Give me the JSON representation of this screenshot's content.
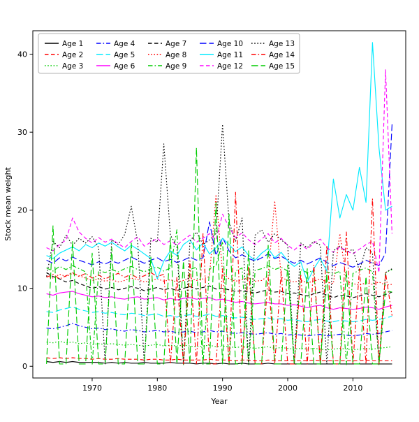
{
  "chart_data": {
    "type": "line",
    "title": "",
    "xlabel": "Year",
    "ylabel": "Stock mean weight",
    "legend_position": "top-inside",
    "grid": false,
    "xlim": [
      1960.9,
      2018.1
    ],
    "ylim": [
      -1.5,
      43
    ],
    "x_ticks": [
      1970,
      1980,
      1990,
      2000,
      2010
    ],
    "y_ticks": [
      0,
      10,
      20,
      30,
      40
    ],
    "colors": {
      "black": "#000000",
      "red": "#ff0000",
      "green": "#00cc00",
      "blue": "#0000ff",
      "cyan": "#00eaff",
      "magenta": "#ff00ff"
    },
    "x": [
      1963,
      1964,
      1965,
      1966,
      1967,
      1968,
      1969,
      1970,
      1971,
      1972,
      1973,
      1974,
      1975,
      1976,
      1977,
      1978,
      1979,
      1980,
      1981,
      1982,
      1983,
      1984,
      1985,
      1986,
      1987,
      1988,
      1989,
      1990,
      1991,
      1992,
      1993,
      1994,
      1995,
      1996,
      1997,
      1998,
      1999,
      2000,
      2001,
      2002,
      2003,
      2004,
      2005,
      2006,
      2007,
      2008,
      2009,
      2010,
      2011,
      2012,
      2013,
      2014,
      2015,
      2016
    ],
    "series": [
      {
        "name": "Age 1",
        "color": "#000000",
        "linestyle": "solid",
        "values": [
          0.6,
          0.5,
          0.6,
          0.5,
          0.6,
          0.5,
          0.5,
          0.5,
          0.5,
          0.4,
          0.5,
          0.4,
          0.5,
          0.4,
          0.4,
          0.5,
          0.4,
          0.4,
          0.4,
          0.5,
          0.4,
          0.4,
          0.4,
          0.3,
          0.4,
          0.4,
          0.3,
          0.4,
          0.3,
          0.3,
          0.4,
          0.3,
          0.3,
          0.3,
          0.4,
          0.3,
          0.3,
          0.3,
          0.3,
          0.3,
          0.3,
          0.3,
          0.3,
          0.3,
          0.3,
          0.3,
          0.3,
          0.3,
          0.3,
          0.3,
          0.3,
          0.3,
          0.3,
          0.3
        ]
      },
      {
        "name": "Age 2",
        "color": "#ff0000",
        "linestyle": "dashed",
        "values": [
          1.1,
          1.0,
          1.1,
          1.0,
          1.1,
          1.0,
          1.0,
          0.9,
          1.0,
          0.9,
          0.9,
          1.0,
          0.9,
          0.9,
          0.9,
          0.8,
          0.9,
          0.9,
          0.8,
          0.8,
          0.9,
          0.8,
          0.8,
          0.8,
          0.8,
          0.9,
          0.8,
          0.8,
          0.8,
          0.7,
          0.8,
          0.8,
          0.7,
          0.7,
          0.8,
          0.7,
          0.7,
          0.7,
          0.7,
          0.7,
          0.7,
          0.8,
          0.7,
          0.7,
          0.7,
          0.7,
          0.7,
          0.7,
          0.7,
          0.8,
          0.7,
          0.7,
          0.7,
          0.7
        ]
      },
      {
        "name": "Age 3",
        "color": "#00cc00",
        "linestyle": "dotted",
        "values": [
          3.1,
          3.0,
          3.2,
          3.0,
          3.1,
          2.9,
          3.0,
          2.8,
          2.9,
          2.8,
          2.9,
          2.8,
          2.7,
          2.8,
          2.7,
          2.6,
          2.7,
          2.8,
          2.6,
          2.7,
          2.6,
          2.7,
          2.6,
          2.5,
          2.6,
          2.7,
          2.5,
          2.6,
          2.5,
          2.4,
          2.5,
          2.4,
          2.3,
          2.4,
          2.5,
          2.3,
          2.4,
          2.3,
          2.2,
          2.3,
          2.2,
          2.3,
          2.2,
          2.1,
          2.2,
          2.3,
          2.2,
          2.1,
          2.2,
          2.3,
          2.2,
          2.3,
          2.4,
          2.5
        ]
      },
      {
        "name": "Age 4",
        "color": "#0000ff",
        "linestyle": "dashdot",
        "values": [
          4.9,
          4.8,
          5.0,
          5.2,
          5.5,
          5.2,
          5.0,
          4.8,
          4.9,
          4.7,
          4.8,
          4.6,
          4.5,
          4.7,
          4.6,
          4.4,
          4.5,
          4.6,
          4.4,
          4.5,
          4.3,
          4.4,
          4.5,
          4.3,
          4.4,
          4.6,
          4.4,
          4.5,
          4.3,
          4.2,
          4.3,
          4.2,
          4.1,
          4.2,
          4.3,
          4.1,
          4.2,
          4.0,
          4.1,
          4.0,
          3.9,
          4.0,
          4.1,
          3.9,
          4.0,
          4.1,
          4.0,
          3.9,
          4.0,
          4.2,
          4.1,
          4.2,
          4.4,
          4.6
        ]
      },
      {
        "name": "Age 5",
        "color": "#00eaff",
        "linestyle": "longdash",
        "values": [
          7.0,
          6.9,
          7.2,
          7.4,
          7.6,
          7.3,
          7.1,
          6.9,
          7.0,
          6.8,
          6.9,
          6.7,
          6.6,
          6.8,
          6.7,
          6.5,
          6.6,
          6.7,
          6.4,
          6.5,
          6.3,
          6.5,
          6.6,
          6.4,
          6.5,
          6.7,
          6.4,
          6.5,
          6.3,
          6.2,
          6.3,
          6.1,
          6.0,
          6.1,
          6.2,
          6.0,
          6.1,
          5.9,
          6.0,
          5.8,
          5.7,
          5.9,
          6.0,
          5.8,
          5.7,
          5.9,
          5.8,
          5.7,
          5.8,
          6.0,
          5.9,
          6.0,
          6.2,
          6.4
        ]
      },
      {
        "name": "Age 6",
        "color": "#ff00ff",
        "linestyle": "solid",
        "values": [
          9.3,
          9.1,
          9.4,
          9.5,
          9.6,
          9.3,
          9.1,
          8.9,
          9.0,
          8.8,
          8.9,
          8.7,
          8.6,
          8.8,
          8.9,
          8.6,
          8.7,
          8.8,
          8.5,
          8.7,
          8.5,
          8.7,
          8.8,
          8.6,
          8.7,
          8.8,
          8.5,
          8.6,
          8.4,
          8.2,
          8.3,
          8.1,
          8.0,
          8.1,
          8.2,
          8.0,
          8.0,
          7.8,
          7.9,
          7.7,
          7.5,
          7.7,
          7.8,
          7.5,
          7.3,
          7.5,
          7.4,
          7.3,
          7.4,
          7.6,
          7.5,
          7.3,
          7.6,
          7.8
        ]
      },
      {
        "name": "Age 7",
        "color": "#000000",
        "linestyle": "dashed",
        "values": [
          12.0,
          11.5,
          11.2,
          10.8,
          11.0,
          10.6,
          10.3,
          10.0,
          10.2,
          9.9,
          10.1,
          9.8,
          10.0,
          10.2,
          10.0,
          9.7,
          9.9,
          10.1,
          9.8,
          10.0,
          9.7,
          10.0,
          10.2,
          9.9,
          10.1,
          10.3,
          9.9,
          10.0,
          9.8,
          9.6,
          9.7,
          9.5,
          9.4,
          9.6,
          9.8,
          9.5,
          9.6,
          9.3,
          9.4,
          9.2,
          9.0,
          9.3,
          9.5,
          9.1,
          8.8,
          9.1,
          9.0,
          8.8,
          9.0,
          9.3,
          9.1,
          8.9,
          9.2,
          9.5
        ]
      },
      {
        "name": "Age 8",
        "color": "#ff0000",
        "linestyle": "dotted",
        "values": [
          11.6,
          11.3,
          11.8,
          11.5,
          11.9,
          11.6,
          11.3,
          11.0,
          11.2,
          10.9,
          11.1,
          10.8,
          11.0,
          11.3,
          11.1,
          10.8,
          11.0,
          11.2,
          10.9,
          11.1,
          10.8,
          11.0,
          11.3,
          11.0,
          11.2,
          11.5,
          22.0,
          12.0,
          11.2,
          10.9,
          11.1,
          11.4,
          10.9,
          11.0,
          11.6,
          21.2,
          11.4,
          11.0,
          10.8,
          11.0,
          10.7,
          10.9,
          11.2,
          10.8,
          10.6,
          17.0,
          10.9,
          10.6,
          10.4,
          10.7,
          10.5,
          10.8,
          10.4,
          10.5
        ]
      },
      {
        "name": "Age 9",
        "color": "#00cc00",
        "linestyle": "dashdot",
        "values": [
          12.6,
          12.2,
          12.8,
          12.4,
          12.9,
          12.5,
          12.1,
          0.2,
          12.3,
          12.0,
          12.4,
          12.1,
          12.5,
          12.8,
          12.4,
          12.1,
          12.5,
          12.7,
          12.2,
          12.6,
          17.5,
          0.2,
          12.4,
          12.7,
          0.2,
          12.5,
          12.9,
          16.0,
          0.2,
          12.2,
          12.6,
          0.2,
          12.3,
          12.5,
          12.9,
          12.4,
          12.7,
          12.2,
          0.2,
          12.4,
          12.0,
          12.3,
          0.2,
          12.1,
          11.8,
          12.2,
          0.2,
          11.9,
          12.3,
          12.6,
          12.1,
          0.2,
          12.0,
          12.4
        ]
      },
      {
        "name": "Age 10",
        "color": "#0000ff",
        "linestyle": "longdash",
        "values": [
          13.6,
          13.2,
          13.9,
          13.5,
          14.0,
          13.6,
          13.3,
          13.0,
          13.4,
          13.1,
          13.5,
          13.2,
          13.6,
          14.0,
          13.6,
          13.2,
          13.6,
          13.9,
          13.4,
          13.7,
          13.3,
          13.6,
          14.0,
          13.6,
          13.9,
          18.5,
          14.2,
          16.5,
          14.8,
          13.9,
          14.3,
          13.8,
          13.5,
          13.9,
          14.4,
          13.8,
          14.1,
          13.6,
          13.2,
          13.6,
          13.1,
          13.5,
          13.9,
          13.3,
          12.9,
          13.3,
          13.0,
          12.7,
          13.1,
          13.6,
          13.2,
          12.9,
          14.5,
          31.0
        ]
      },
      {
        "name": "Age 11",
        "color": "#00eaff",
        "linestyle": "solid",
        "values": [
          14.2,
          13.8,
          14.5,
          14.9,
          15.3,
          14.8,
          15.6,
          15.2,
          15.8,
          15.4,
          15.9,
          15.3,
          14.8,
          15.5,
          15.0,
          14.4,
          13.8,
          11.2,
          13.5,
          14.8,
          14.2,
          15.6,
          16.2,
          14.9,
          15.8,
          14.4,
          15.2,
          16.4,
          15.6,
          14.7,
          15.3,
          14.2,
          13.6,
          14.5,
          15.1,
          13.9,
          14.6,
          13.5,
          12.8,
          13.4,
          10.8,
          12.5,
          13.8,
          12.2,
          24.0,
          19.0,
          22.0,
          20.0,
          25.5,
          21.0,
          41.5,
          28.0,
          20.0,
          20.5
        ]
      },
      {
        "name": "Age 12",
        "color": "#ff00ff",
        "linestyle": "dashed",
        "values": [
          15.2,
          14.8,
          15.6,
          16.2,
          19.0,
          17.2,
          16.4,
          15.8,
          16.5,
          15.9,
          16.3,
          15.7,
          15.2,
          16.0,
          16.6,
          15.4,
          15.9,
          16.4,
          15.6,
          16.1,
          15.5,
          16.2,
          16.8,
          15.9,
          16.4,
          17.0,
          16.2,
          19.5,
          17.8,
          16.5,
          17.1,
          16.2,
          15.6,
          16.3,
          17.0,
          15.8,
          16.4,
          15.5,
          14.9,
          15.6,
          15.0,
          15.8,
          16.3,
          15.2,
          14.6,
          15.3,
          14.8,
          14.4,
          15.0,
          15.6,
          16.0,
          12.0,
          38.0,
          17.0
        ]
      },
      {
        "name": "Age 13",
        "color": "#000000",
        "linestyle": "dotted",
        "values": [
          11.5,
          16.0,
          15.2,
          16.8,
          15.5,
          16.4,
          15.8,
          16.6,
          15.2,
          0.3,
          16.2,
          15.6,
          16.9,
          20.5,
          15.8,
          0.3,
          16.4,
          15.9,
          28.5,
          16.8,
          15.4,
          0.3,
          16.0,
          17.2,
          15.6,
          16.2,
          17.0,
          31.0,
          18.5,
          16.0,
          19.0,
          0.3,
          16.8,
          17.5,
          15.9,
          17.0,
          16.2,
          15.5,
          0.3,
          15.8,
          15.2,
          16.0,
          15.5,
          0.3,
          14.8,
          15.4,
          14.6,
          15.0,
          12.2,
          15.2,
          14.5,
          0.3,
          12.0,
          12.5
        ]
      },
      {
        "name": "Age 14",
        "color": "#ff0000",
        "linestyle": "dashdot",
        "values": [
          11.4,
          11.8,
          11.2,
          11.6,
          12.0,
          11.5,
          11.9,
          11.3,
          11.7,
          11.2,
          11.6,
          11.9,
          11.4,
          11.8,
          11.3,
          11.6,
          12.0,
          11.5,
          11.8,
          0.3,
          11.4,
          0.3,
          13.5,
          0.3,
          17.0,
          0.3,
          0.3,
          12.5,
          0.3,
          22.3,
          0.3,
          12.8,
          0.3,
          0.3,
          11.5,
          0.3,
          12.2,
          0.3,
          0.3,
          11.8,
          0.3,
          13.0,
          0.3,
          15.5,
          0.3,
          0.3,
          17.2,
          0.3,
          12.5,
          0.3,
          21.5,
          0.3,
          12.0,
          6.5
        ]
      },
      {
        "name": "Age 15",
        "color": "#00cc00",
        "linestyle": "longdash",
        "values": [
          0.3,
          18.0,
          0.3,
          0.3,
          16.0,
          0.3,
          0.3,
          14.5,
          0.3,
          0.3,
          15.2,
          0.3,
          0.3,
          15.8,
          0.3,
          0.3,
          14.0,
          0.3,
          0.3,
          16.5,
          0.3,
          13.5,
          0.3,
          28.0,
          0.3,
          0.3,
          21.0,
          0.3,
          19.5,
          0.3,
          0.3,
          14.8,
          0.3,
          0.3,
          15.5,
          0.3,
          0.3,
          13.0,
          0.3,
          0.3,
          12.5,
          0.3,
          0.3,
          11.8,
          0.3,
          0.3,
          12.2,
          0.3,
          0.3,
          11.5,
          0.3,
          0.3,
          9.7,
          9.5
        ]
      }
    ]
  }
}
